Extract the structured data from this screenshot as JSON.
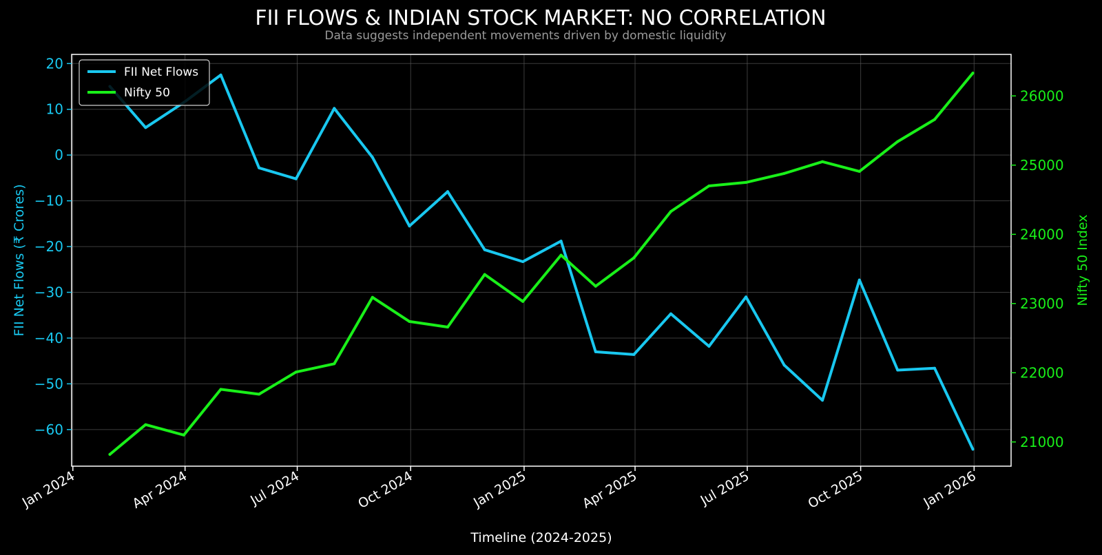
{
  "colors": {
    "background": "#000000",
    "flows": "#19c8f0",
    "nifty": "#19f019",
    "title": "#ffffff",
    "subtitle": "#9a9a9a",
    "grid": "#555555",
    "frame": "#ffffff"
  },
  "chart_data": {
    "type": "line",
    "title": "FII FLOWS & INDIAN STOCK MARKET: NO CORRELATION",
    "subtitle": "Data suggests independent movements driven by domestic liquidity",
    "xlabel": "Timeline (2024-2025)",
    "ylabel_left": "FII Net Flows (₹ Crores)",
    "ylabel_right": "Nifty 50 Index",
    "x": [
      "2024-01-31",
      "2024-02-29",
      "2024-03-31",
      "2024-04-30",
      "2024-05-31",
      "2024-06-30",
      "2024-07-31",
      "2024-08-31",
      "2024-09-30",
      "2024-10-31",
      "2024-11-30",
      "2024-12-31",
      "2025-01-31",
      "2025-02-28",
      "2025-03-31",
      "2025-04-30",
      "2025-05-31",
      "2025-06-30",
      "2025-07-31",
      "2025-08-31",
      "2025-09-30",
      "2025-10-31",
      "2025-11-30",
      "2025-12-31"
    ],
    "xlim": [
      "2023-12-31",
      "2026-01-31"
    ],
    "x_ticks": [
      "2024-01-01",
      "2024-04-01",
      "2024-07-01",
      "2024-10-01",
      "2025-01-01",
      "2025-04-01",
      "2025-07-01",
      "2025-10-01",
      "2026-01-01"
    ],
    "x_tick_labels": [
      "Jan 2024",
      "Apr 2024",
      "Jul 2024",
      "Oct 2024",
      "Jan 2025",
      "Apr 2025",
      "Jul 2025",
      "Oct 2025",
      "Jan 2026"
    ],
    "ylim_left": [
      -68,
      22
    ],
    "yticks_left": [
      20,
      10,
      0,
      -10,
      -20,
      -30,
      -40,
      -50,
      -60
    ],
    "ytick_labels_left": [
      "20",
      "10",
      "0",
      "−10",
      "−20",
      "−30",
      "−40",
      "−50",
      "−60"
    ],
    "ylim_right": [
      20650,
      26600
    ],
    "yticks_right": [
      21000,
      22000,
      23000,
      24000,
      25000,
      26000
    ],
    "ytick_labels_right": [
      "21000",
      "22000",
      "23000",
      "24000",
      "25000",
      "26000"
    ],
    "series": [
      {
        "name": "FII Net Flows",
        "axis": "left",
        "values": [
          15.0,
          6.0,
          11.5,
          17.5,
          -2.8,
          -5.2,
          10.2,
          -0.5,
          -15.5,
          -8.0,
          -20.7,
          -23.3,
          -18.8,
          -43.0,
          -43.6,
          -34.7,
          -41.8,
          -31.0,
          -45.9,
          -53.6,
          -27.3,
          -47.0,
          -46.6,
          -64.3
        ]
      },
      {
        "name": "Nifty 50",
        "axis": "right",
        "values": [
          20820,
          21250,
          21100,
          21760,
          21690,
          22010,
          22130,
          23090,
          22740,
          22660,
          23420,
          23030,
          23700,
          23250,
          23660,
          24330,
          24700,
          24750,
          24880,
          25050,
          24910,
          25340,
          25660,
          26330
        ]
      }
    ],
    "grid": true,
    "legend_position": "top-left"
  }
}
